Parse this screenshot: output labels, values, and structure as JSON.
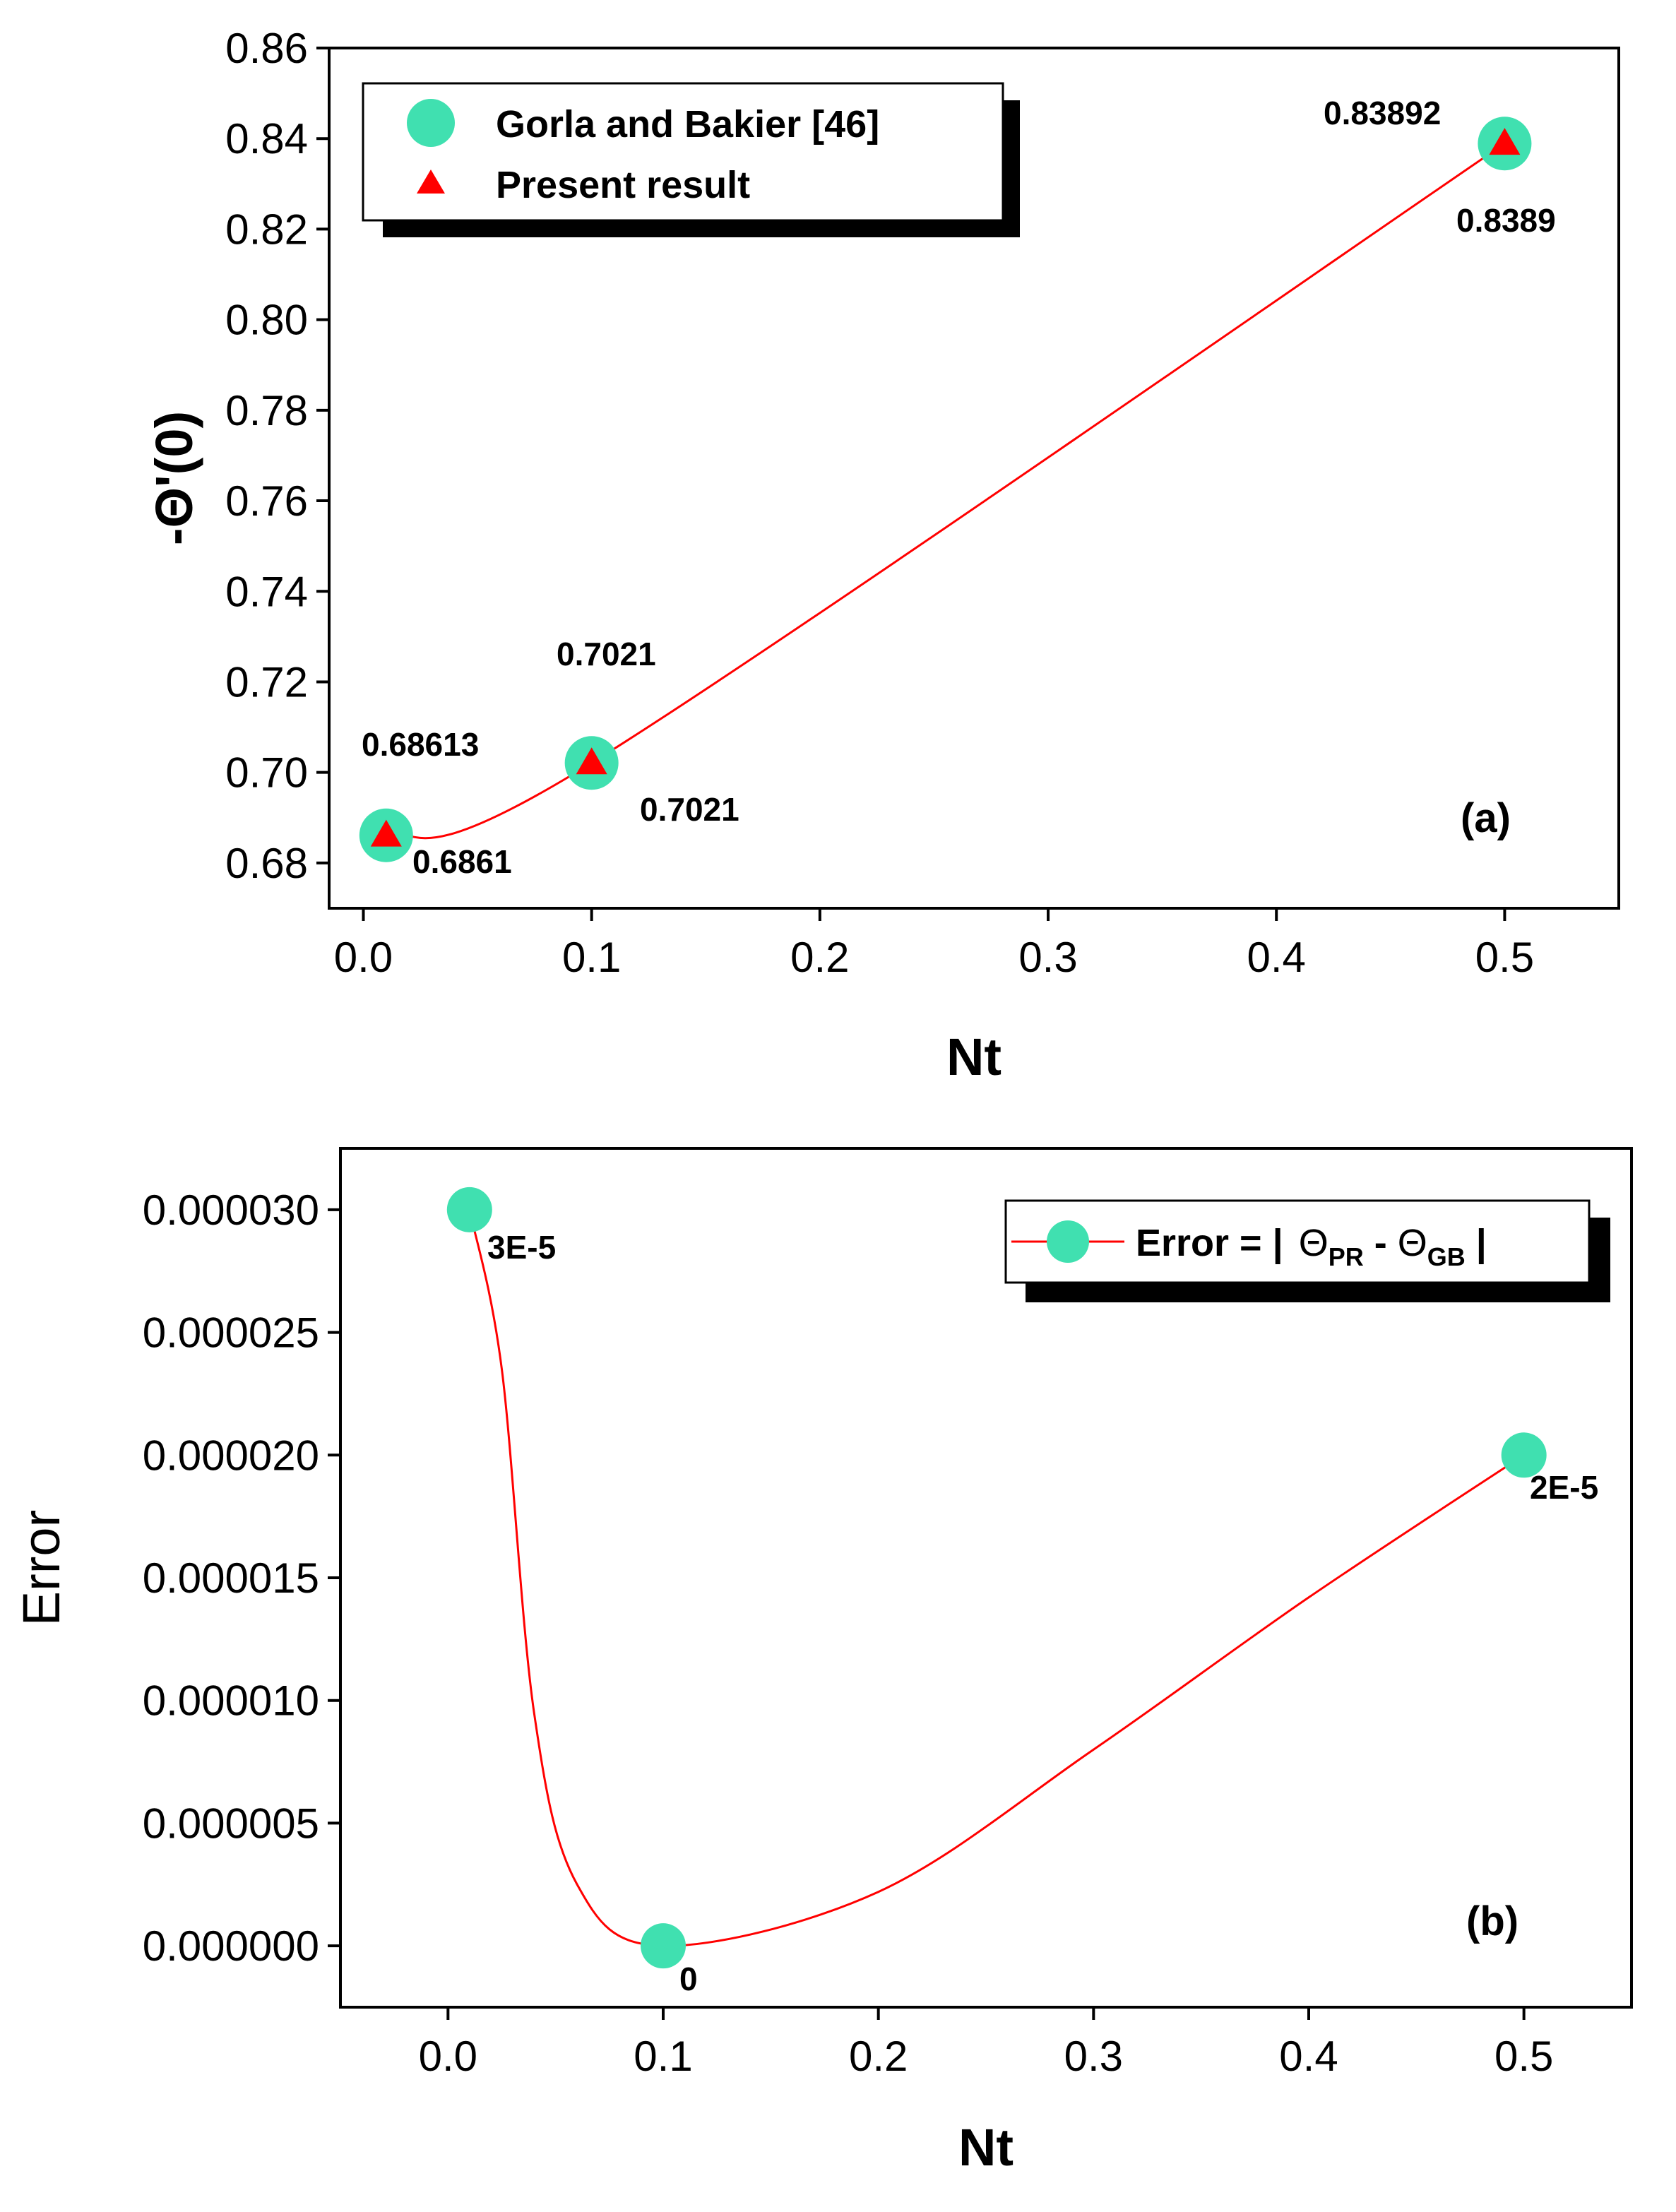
{
  "colors": {
    "marker": "#40E0B0",
    "triangle": "#FF0000",
    "line": "#FF0000",
    "axis": "#000000"
  },
  "chart_data": [
    {
      "type": "line",
      "panel_label": "(a)",
      "xlabel": "Nt",
      "ylabel": "-Θ'(0)",
      "xlim": [
        -0.015,
        0.55
      ],
      "ylim": [
        0.67,
        0.86
      ],
      "xticks": [
        0.0,
        0.1,
        0.2,
        0.3,
        0.4,
        0.5
      ],
      "xtick_labels": [
        "0.0",
        "0.1",
        "0.2",
        "0.3",
        "0.4",
        "0.5"
      ],
      "yticks": [
        0.68,
        0.7,
        0.72,
        0.74,
        0.76,
        0.78,
        0.8,
        0.82,
        0.84,
        0.86
      ],
      "ytick_labels": [
        "0.68",
        "0.70",
        "0.72",
        "0.74",
        "0.76",
        "0.78",
        "0.80",
        "0.82",
        "0.84",
        "0.86"
      ],
      "legend_position": "top-left",
      "series": [
        {
          "name": "Gorla and Bakier [46]",
          "marker": "circle",
          "x": [
            0.01,
            0.1,
            0.5
          ],
          "y": [
            0.6861,
            0.7021,
            0.8389
          ]
        },
        {
          "name": "Present result",
          "marker": "triangle",
          "x": [
            0.01,
            0.1,
            0.5
          ],
          "y": [
            0.68613,
            0.7021,
            0.83892
          ]
        }
      ],
      "annotations": [
        "0.68613",
        "0.6861",
        "0.7021",
        "0.7021",
        "0.83892",
        "0.8389"
      ]
    },
    {
      "type": "line",
      "panel_label": "(b)",
      "xlabel": "Nt",
      "ylabel": "Error",
      "xlim": [
        -0.05,
        0.55
      ],
      "ylim": [
        -2.5e-06,
        3.25e-05
      ],
      "xticks": [
        0.0,
        0.1,
        0.2,
        0.3,
        0.4,
        0.5
      ],
      "xtick_labels": [
        "0.0",
        "0.1",
        "0.2",
        "0.3",
        "0.4",
        "0.5"
      ],
      "yticks": [
        0,
        5e-06,
        1e-05,
        1.5e-05,
        2e-05,
        2.5e-05,
        3e-05
      ],
      "ytick_labels": [
        "0.000000",
        "0.000005",
        "0.000010",
        "0.000015",
        "0.000020",
        "0.000025",
        "0.000030"
      ],
      "legend_position": "top-right",
      "legend": {
        "prefix": "Error = |",
        "theta": "Θ",
        "sub1": "PR",
        "dash": " - ",
        "sub2": "GB",
        "suffix": " |"
      },
      "series": [
        {
          "name": "Error",
          "marker": "circle",
          "x": [
            0.01,
            0.1,
            0.5
          ],
          "y": [
            3e-05,
            0,
            2e-05
          ]
        }
      ],
      "annotations": [
        "3E-5",
        "0",
        "2E-5"
      ]
    }
  ]
}
